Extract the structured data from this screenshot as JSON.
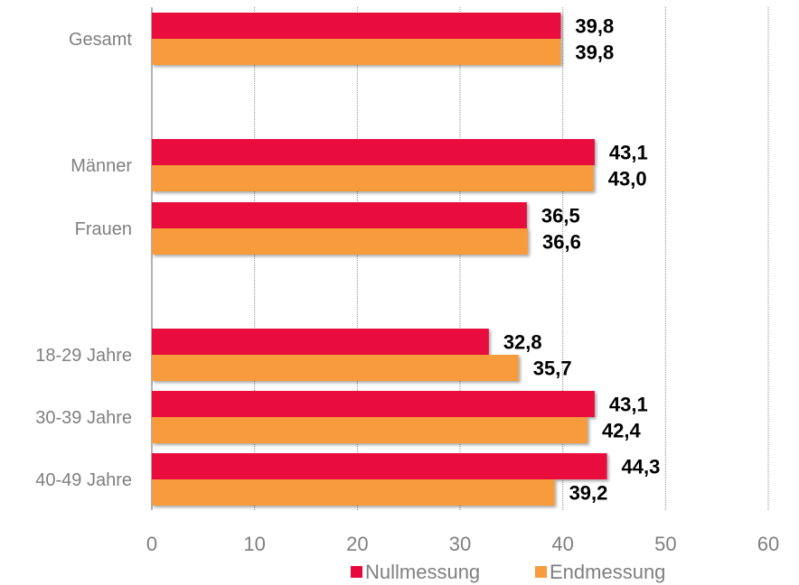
{
  "chart_data": {
    "type": "bar",
    "orientation": "horizontal",
    "categories": [
      "Gesamt",
      "Männer",
      "Frauen",
      "18-29 Jahre",
      "30-39 Jahre",
      "40-49 Jahre"
    ],
    "series": [
      {
        "name": "Nullmessung",
        "color": "#e8083e",
        "values": [
          39.8,
          43.1,
          36.5,
          32.8,
          43.1,
          44.3
        ],
        "labels": [
          "39,8",
          "43,1",
          "36,5",
          "32,8",
          "43,1",
          "44,3"
        ]
      },
      {
        "name": "Endmessung",
        "color": "#f79b3c",
        "values": [
          39.8,
          43.0,
          36.6,
          35.7,
          42.4,
          39.2
        ],
        "labels": [
          "39,8",
          "43,0",
          "36,6",
          "35,7",
          "42,4",
          "39,2"
        ]
      }
    ],
    "xlim": [
      0,
      60
    ],
    "xticks": [
      "0",
      "10",
      "20",
      "30",
      "40",
      "50",
      "60"
    ],
    "grid": true,
    "legend": "bottom",
    "title": "",
    "xlabel": "",
    "ylabel": ""
  }
}
